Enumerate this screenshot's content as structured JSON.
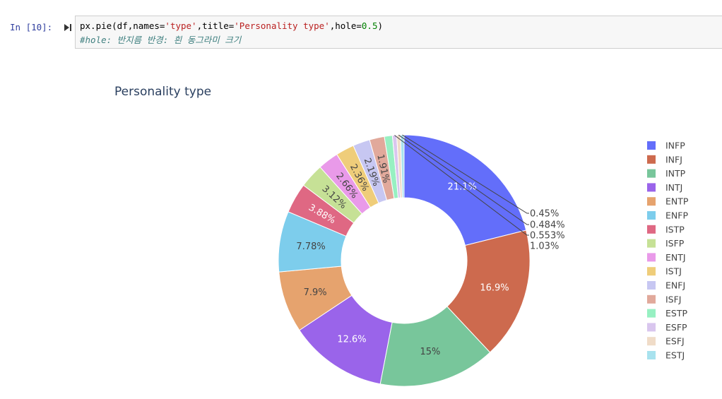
{
  "notebook": {
    "prompt": "In [10]:",
    "code_parts": {
      "p1": "px.pie(df,names=",
      "s1": "'type'",
      "p2": ",title=",
      "s2": "'Personality type'",
      "p3": ",hole=",
      "n1": "0.5",
      "p4": ")"
    },
    "comment": "#hole: 반지름 반경: 흰 동그라미 크기"
  },
  "chart_data": {
    "type": "pie",
    "title": "Personality type",
    "hole": 0.5,
    "legend_position": "right",
    "labels": [
      "INFP",
      "INFJ",
      "INTP",
      "INTJ",
      "ENTP",
      "ENFP",
      "ISTP",
      "ISFP",
      "ENTJ",
      "ISTJ",
      "ENFJ",
      "ISFJ",
      "ESTP",
      "ESFP",
      "ESFJ",
      "ESTJ"
    ],
    "values": [
      21.1,
      16.9,
      15,
      12.6,
      7.9,
      7.78,
      3.88,
      3.12,
      2.66,
      2.36,
      2.19,
      1.91,
      1.03,
      0.553,
      0.484,
      0.45
    ],
    "text_labels": [
      "21.1%",
      "16.9%",
      "15%",
      "12.6%",
      "7.9%",
      "7.78%",
      "3.88%",
      "3.12%",
      "2.66%",
      "2.36%",
      "2.19%",
      "1.91%",
      "1.03%",
      "0.553%",
      "0.484%",
      "0.45%"
    ],
    "colors": [
      "#636efa",
      "#cd6a4e",
      "#78c69b",
      "#9a64ea",
      "#e6a36e",
      "#7dcdec",
      "#df6883",
      "#c6e196",
      "#e99ae9",
      "#efcd7a",
      "#c7c7f2",
      "#e1a99b",
      "#97f0c2",
      "#d9c6ee",
      "#f0dcc8",
      "#a8e2ee"
    ]
  }
}
